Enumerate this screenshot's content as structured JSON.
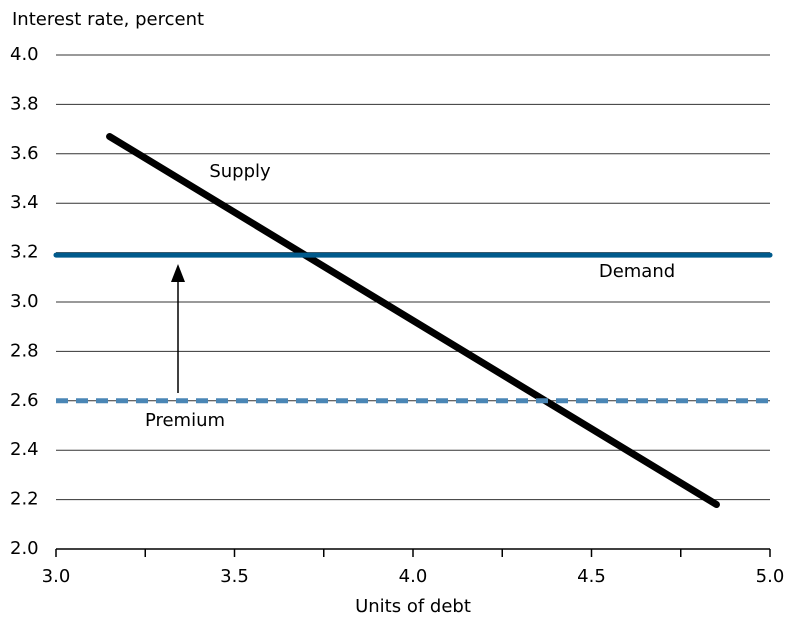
{
  "chart_data": {
    "type": "line",
    "y_axis_label": "Interest rate, percent",
    "x_axis_label": "Units of debt",
    "xlim": [
      3.0,
      5.0
    ],
    "xticks": [
      {
        "value": 3,
        "label": "3.0"
      },
      3.5,
      {
        "value": 4,
        "label": "4.0"
      },
      4.5,
      {
        "value": 5,
        "label": "5.0"
      }
    ],
    "xminor_ticks": [
      3.25,
      3.75,
      4.25,
      4.75
    ],
    "ylim": [
      2.0,
      4.0
    ],
    "yticks": [
      {
        "value": 2,
        "label": "2.0"
      },
      2.2,
      2.4,
      2.6,
      2.8,
      {
        "value": 3,
        "label": "3.0"
      },
      3.2,
      3.4,
      3.6,
      3.8,
      {
        "value": 4,
        "label": "4.0"
      }
    ],
    "grid": true,
    "series": [
      {
        "name": "Supply",
        "color": "#000000",
        "dashed": false,
        "x": [
          3.15,
          4.85
        ],
        "values": [
          3.67,
          2.18
        ]
      },
      {
        "name": "Demand",
        "color": "#005a8c",
        "dashed": false,
        "x": [
          3.0,
          5.0
        ],
        "values": [
          3.19,
          3.19
        ]
      },
      {
        "name": "Premium",
        "color": "#4a86b5",
        "dashed": true,
        "x": [
          3.0,
          5.0
        ],
        "values": [
          2.6,
          2.6
        ]
      }
    ]
  }
}
